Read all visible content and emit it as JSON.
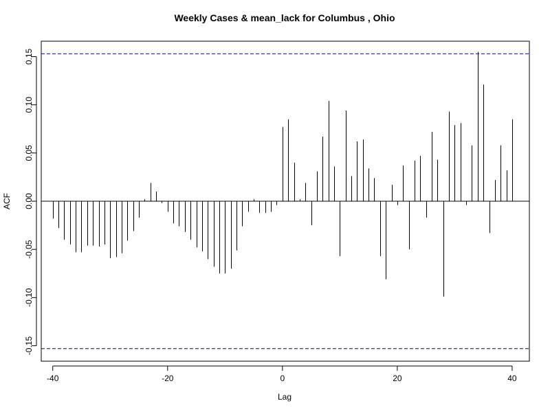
{
  "chart_data": {
    "type": "bar",
    "title": "Weekly Cases & mean_lack for Columbus , Ohio",
    "xlabel": "Lag",
    "ylabel": "ACF",
    "xlim": [
      -42,
      43
    ],
    "ylim": [
      -0.166,
      0.166
    ],
    "x_ticks": [
      -40,
      -20,
      0,
      20,
      40
    ],
    "x_tick_labels": [
      "-40",
      "-20",
      "0",
      "20",
      "40"
    ],
    "y_ticks": [
      -0.15,
      -0.1,
      -0.05,
      0.0,
      0.05,
      0.1,
      0.15
    ],
    "y_tick_labels": [
      "-0.15",
      "-0.10",
      "-0.05",
      "0.00",
      "0.05",
      "0.10",
      "0.15"
    ],
    "confidence_bound": 0.153,
    "confidence_color": "#00008b",
    "bar_color": "#000000",
    "lags": [
      -40,
      -39,
      -38,
      -37,
      -36,
      -35,
      -34,
      -33,
      -32,
      -31,
      -30,
      -29,
      -28,
      -27,
      -26,
      -25,
      -24,
      -23,
      -22,
      -21,
      -20,
      -19,
      -18,
      -17,
      -16,
      -15,
      -14,
      -13,
      -12,
      -11,
      -10,
      -9,
      -8,
      -7,
      -6,
      -5,
      -4,
      -3,
      -2,
      -1,
      0,
      1,
      2,
      3,
      4,
      5,
      6,
      7,
      8,
      9,
      10,
      11,
      12,
      13,
      14,
      15,
      16,
      17,
      18,
      19,
      20,
      21,
      22,
      23,
      24,
      25,
      26,
      27,
      28,
      29,
      30,
      31,
      32,
      33,
      34,
      35,
      36,
      37,
      38,
      39,
      40
    ],
    "values": [
      -0.018,
      -0.028,
      -0.04,
      -0.045,
      -0.053,
      -0.053,
      -0.046,
      -0.046,
      -0.047,
      -0.045,
      -0.059,
      -0.058,
      -0.054,
      -0.041,
      -0.031,
      -0.017,
      0.002,
      0.019,
      0.01,
      -0.002,
      -0.011,
      -0.023,
      -0.026,
      -0.032,
      -0.04,
      -0.048,
      -0.052,
      -0.06,
      -0.068,
      -0.075,
      -0.075,
      -0.07,
      -0.051,
      -0.026,
      -0.011,
      0.002,
      -0.012,
      -0.012,
      -0.011,
      -0.004,
      0.077,
      0.085,
      0.04,
      0.002,
      0.019,
      -0.025,
      0.031,
      0.067,
      0.104,
      0.036,
      -0.057,
      0.094,
      0.026,
      0.062,
      0.064,
      0.034,
      0.024,
      -0.057,
      -0.081,
      0.017,
      -0.004,
      0.037,
      -0.05,
      0.042,
      0.047,
      -0.017,
      0.072,
      0.043,
      -0.099,
      0.093,
      0.079,
      0.081,
      -0.004,
      0.058,
      0.155,
      0.121,
      -0.033,
      0.022,
      0.058,
      0.032,
      0.085
    ]
  }
}
